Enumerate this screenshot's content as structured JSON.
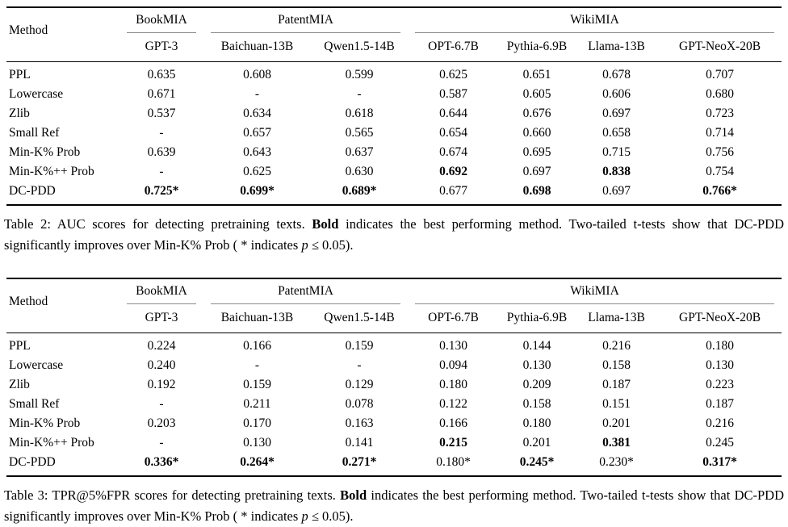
{
  "page": {
    "background": "#ffffff",
    "text_color": "#000000",
    "rule_color": "#000000",
    "cmidrule_color": "#8a8a8a"
  },
  "tables": [
    {
      "name": "table-2-auc-scores",
      "method_header": "Method",
      "groups": [
        {
          "label": "BookMIA",
          "span": 1
        },
        {
          "label": "PatentMIA",
          "span": 2
        },
        {
          "label": "WikiMIA",
          "span": 4
        }
      ],
      "models": [
        "GPT-3",
        "Baichuan-13B",
        "Qwen1.5-14B",
        "OPT-6.7B",
        "Pythia-6.9B",
        "Llama-13B",
        "GPT-NeoX-20B"
      ],
      "rows": [
        {
          "method": "PPL",
          "cells": [
            {
              "v": "0.635"
            },
            {
              "v": "0.608"
            },
            {
              "v": "0.599"
            },
            {
              "v": "0.625"
            },
            {
              "v": "0.651"
            },
            {
              "v": "0.678"
            },
            {
              "v": "0.707"
            }
          ]
        },
        {
          "method": "Lowercase",
          "cells": [
            {
              "v": "0.671"
            },
            {
              "v": "-"
            },
            {
              "v": "-"
            },
            {
              "v": "0.587"
            },
            {
              "v": "0.605"
            },
            {
              "v": "0.606"
            },
            {
              "v": "0.680"
            }
          ]
        },
        {
          "method": "Zlib",
          "cells": [
            {
              "v": "0.537"
            },
            {
              "v": "0.634"
            },
            {
              "v": "0.618"
            },
            {
              "v": "0.644"
            },
            {
              "v": "0.676"
            },
            {
              "v": "0.697"
            },
            {
              "v": "0.723"
            }
          ]
        },
        {
          "method": "Small Ref",
          "cells": [
            {
              "v": "-"
            },
            {
              "v": "0.657"
            },
            {
              "v": "0.565"
            },
            {
              "v": "0.654"
            },
            {
              "v": "0.660"
            },
            {
              "v": "0.658"
            },
            {
              "v": "0.714"
            }
          ]
        },
        {
          "method": "Min-K% Prob",
          "cells": [
            {
              "v": "0.639"
            },
            {
              "v": "0.643"
            },
            {
              "v": "0.637"
            },
            {
              "v": "0.674"
            },
            {
              "v": "0.695"
            },
            {
              "v": "0.715"
            },
            {
              "v": "0.756"
            }
          ]
        },
        {
          "method": "Min-K%++ Prob",
          "cells": [
            {
              "v": "-"
            },
            {
              "v": "0.625"
            },
            {
              "v": "0.630"
            },
            {
              "v": "0.692",
              "b": true
            },
            {
              "v": "0.697"
            },
            {
              "v": "0.838",
              "b": true
            },
            {
              "v": "0.754"
            }
          ]
        },
        {
          "method": "DC-PDD",
          "cells": [
            {
              "v": "0.725*",
              "b": true
            },
            {
              "v": "0.699*",
              "b": true
            },
            {
              "v": "0.689*",
              "b": true
            },
            {
              "v": "0.677"
            },
            {
              "v": "0.698",
              "b": true
            },
            {
              "v": "0.697"
            },
            {
              "v": "0.766*",
              "b": true
            }
          ]
        }
      ],
      "caption": [
        {
          "t": "Table 2: AUC scores for detecting pretraining texts. "
        },
        {
          "t": "Bold",
          "b": true
        },
        {
          "t": " indicates the best performing method. Two-tailed t-tests show that DC-PDD significantly improves over Min-K% Prob ( * indicates "
        },
        {
          "t": "p",
          "i": true
        },
        {
          "t": " ≤ 0.05)."
        }
      ]
    },
    {
      "name": "table-3-tpr-scores",
      "method_header": "Method",
      "groups": [
        {
          "label": "BookMIA",
          "span": 1
        },
        {
          "label": "PatentMIA",
          "span": 2
        },
        {
          "label": "WikiMIA",
          "span": 4
        }
      ],
      "models": [
        "GPT-3",
        "Baichuan-13B",
        "Qwen1.5-14B",
        "OPT-6.7B",
        "Pythia-6.9B",
        "Llama-13B",
        "GPT-NeoX-20B"
      ],
      "rows": [
        {
          "method": "PPL",
          "cells": [
            {
              "v": "0.224"
            },
            {
              "v": "0.166"
            },
            {
              "v": "0.159"
            },
            {
              "v": "0.130"
            },
            {
              "v": "0.144"
            },
            {
              "v": "0.216"
            },
            {
              "v": "0.180"
            }
          ]
        },
        {
          "method": "Lowercase",
          "cells": [
            {
              "v": "0.240"
            },
            {
              "v": "-"
            },
            {
              "v": "-"
            },
            {
              "v": "0.094"
            },
            {
              "v": "0.130"
            },
            {
              "v": "0.158"
            },
            {
              "v": "0.130"
            }
          ]
        },
        {
          "method": "Zlib",
          "cells": [
            {
              "v": "0.192"
            },
            {
              "v": "0.159"
            },
            {
              "v": "0.129"
            },
            {
              "v": "0.180"
            },
            {
              "v": "0.209"
            },
            {
              "v": "0.187"
            },
            {
              "v": "0.223"
            }
          ]
        },
        {
          "method": "Small Ref",
          "cells": [
            {
              "v": "-"
            },
            {
              "v": "0.211"
            },
            {
              "v": "0.078"
            },
            {
              "v": "0.122"
            },
            {
              "v": "0.158"
            },
            {
              "v": "0.151"
            },
            {
              "v": "0.187"
            }
          ]
        },
        {
          "method": "Min-K% Prob",
          "cells": [
            {
              "v": "0.203"
            },
            {
              "v": "0.170"
            },
            {
              "v": "0.163"
            },
            {
              "v": "0.166"
            },
            {
              "v": "0.180"
            },
            {
              "v": "0.201"
            },
            {
              "v": "0.216"
            }
          ]
        },
        {
          "method": "Min-K%++ Prob",
          "cells": [
            {
              "v": "-"
            },
            {
              "v": "0.130"
            },
            {
              "v": "0.141"
            },
            {
              "v": "0.215",
              "b": true
            },
            {
              "v": "0.201"
            },
            {
              "v": "0.381",
              "b": true
            },
            {
              "v": "0.245"
            }
          ]
        },
        {
          "method": "DC-PDD",
          "cells": [
            {
              "v": "0.336*",
              "b": true
            },
            {
              "v": "0.264*",
              "b": true
            },
            {
              "v": "0.271*",
              "b": true
            },
            {
              "v": "0.180*"
            },
            {
              "v": "0.245*",
              "b": true
            },
            {
              "v": "0.230*"
            },
            {
              "v": "0.317*",
              "b": true
            }
          ]
        }
      ],
      "caption": [
        {
          "t": "Table 3: TPR@5%FPR scores for detecting pretraining texts. "
        },
        {
          "t": "Bold",
          "b": true
        },
        {
          "t": " indicates the best performing method. Two-tailed t-tests show that DC-PDD significantly improves over Min-K% Prob ( * indicates "
        },
        {
          "t": "p",
          "i": true
        },
        {
          "t": " ≤ 0.05)."
        }
      ]
    }
  ]
}
